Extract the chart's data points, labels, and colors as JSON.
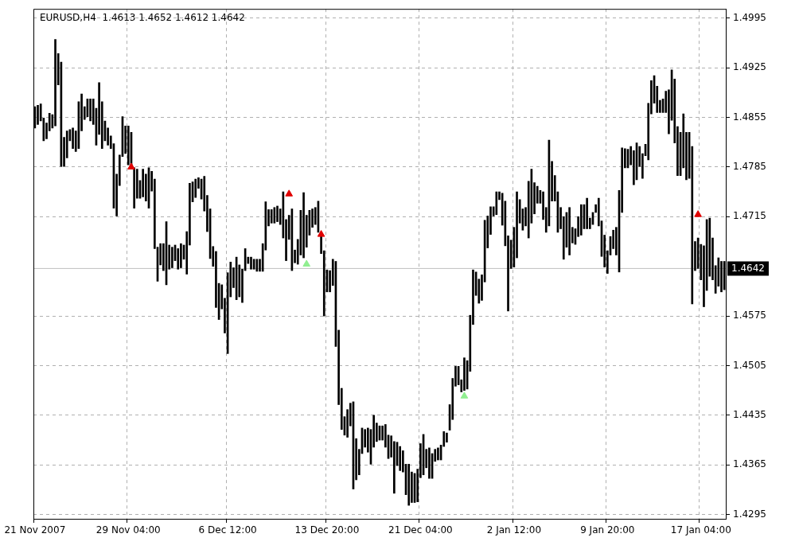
{
  "chart_data": {
    "type": "bar",
    "title": "EURUSD,H4  1.4613 1.4652 1.4612 1.4642",
    "categories": [
      "21 Nov 2007",
      null,
      null,
      null,
      null,
      null,
      null,
      null,
      null,
      null,
      null,
      null,
      null,
      null,
      null,
      null,
      null,
      null,
      null,
      null,
      null,
      null,
      null,
      null,
      null,
      null,
      null,
      null,
      null,
      null,
      null,
      null,
      "29 Nov 04:00",
      null,
      null,
      null,
      null,
      null,
      null,
      null,
      null,
      null,
      null,
      null,
      null,
      null,
      null,
      null,
      null,
      null,
      null,
      null,
      null,
      null,
      null,
      null,
      null,
      null,
      null,
      null,
      null,
      null,
      null,
      null,
      null,
      null,
      "6 Dec 12:00",
      null,
      null,
      null,
      null,
      null,
      null,
      null,
      null,
      null,
      null,
      null,
      null,
      null,
      null,
      null,
      null,
      null,
      null,
      null,
      null,
      null,
      null,
      null,
      null,
      null,
      null,
      null,
      null,
      null,
      null,
      null,
      null,
      null,
      "13 Dec 20:00",
      null,
      null,
      null,
      null,
      null,
      null,
      null,
      null,
      null,
      null,
      null,
      null,
      null,
      null,
      null,
      null,
      null,
      null,
      null,
      null,
      null,
      null,
      null,
      null,
      null,
      null,
      null,
      null,
      null,
      null,
      null,
      "21 Dec 04:00",
      null,
      null,
      null,
      null,
      null,
      null,
      null,
      null,
      null,
      null,
      null,
      null,
      null,
      null,
      null,
      null,
      null,
      null,
      null,
      null,
      null,
      null,
      null,
      null,
      null,
      null,
      null,
      null,
      null,
      null,
      null,
      "2 Jan 12:00",
      null,
      null,
      null,
      null,
      null,
      null,
      null,
      null,
      null,
      null,
      null,
      null,
      null,
      null,
      null,
      null,
      null,
      null,
      null,
      null,
      null,
      null,
      null,
      null,
      null,
      null,
      null,
      null,
      null,
      null,
      null,
      "9 Jan 20:00",
      null,
      null,
      null,
      null,
      null,
      null,
      null,
      null,
      null,
      null,
      null,
      null,
      null,
      null,
      null,
      null,
      null,
      null,
      null,
      null,
      null,
      null,
      null,
      null,
      null,
      null,
      null,
      null,
      null,
      null,
      null,
      "17 Jan 04:00",
      null,
      null,
      null,
      null,
      null,
      null,
      null,
      null
    ],
    "series": [
      {
        "color": "#000000",
        "base": [
          1.484,
          1.4845,
          1.485,
          1.4822,
          1.4825,
          1.4836,
          1.484,
          1.4843,
          1.4901,
          1.4786,
          1.4786,
          1.4798,
          1.4822,
          1.4811,
          1.4807,
          1.4811,
          1.4836,
          1.4852,
          1.4856,
          1.485,
          1.4845,
          1.4816,
          1.4831,
          1.4811,
          1.4822,
          1.4816,
          1.4811,
          1.4727,
          1.4716,
          1.4759,
          1.48,
          1.4804,
          1.4788,
          1.4784,
          1.4727,
          1.4741,
          1.4741,
          1.4743,
          1.4737,
          1.4727,
          1.4751,
          1.467,
          1.4624,
          1.4647,
          1.4639,
          1.4619,
          1.4641,
          1.4643,
          1.4653,
          1.4641,
          1.4643,
          1.4655,
          1.4634,
          1.4675,
          1.4736,
          1.4742,
          1.4755,
          1.474,
          1.4723,
          1.4694,
          1.4656,
          1.4645,
          1.4587,
          1.457,
          1.4585,
          1.4551,
          1.4522,
          1.4602,
          1.4615,
          1.4598,
          1.4602,
          1.4594,
          1.4639,
          1.4649,
          1.4641,
          1.4641,
          1.4638,
          1.4638,
          1.4638,
          1.4668,
          1.4702,
          1.4706,
          1.4706,
          1.4708,
          1.4704,
          1.4685,
          1.4653,
          1.4683,
          1.4639,
          1.465,
          1.4648,
          1.4661,
          1.4657,
          1.4672,
          1.4689,
          1.47,
          1.4704,
          1.4693,
          1.4663,
          1.4575,
          1.4609,
          1.4609,
          1.4618,
          1.4532,
          1.445,
          1.4415,
          1.4407,
          1.4404,
          1.442,
          1.4331,
          1.4344,
          1.4351,
          1.4381,
          1.439,
          1.4383,
          1.4366,
          1.439,
          1.4398,
          1.44,
          1.44,
          1.439,
          1.4374,
          1.4376,
          1.4325,
          1.4364,
          1.4357,
          1.4355,
          1.4323,
          1.4308,
          1.4312,
          1.4312,
          1.4313,
          1.4347,
          1.4351,
          1.4361,
          1.4346,
          1.4346,
          1.437,
          1.4372,
          1.4372,
          1.4391,
          1.4397,
          1.4414,
          1.4429,
          1.4476,
          1.4478,
          1.4468,
          1.447,
          1.4472,
          1.4497,
          1.4563,
          1.4604,
          1.4593,
          1.4597,
          1.4623,
          1.4671,
          1.469,
          1.4716,
          1.4718,
          1.4739,
          1.4703,
          1.4674,
          1.4582,
          1.4642,
          1.4644,
          1.4657,
          1.4706,
          1.4696,
          1.4702,
          1.4685,
          1.4706,
          1.4719,
          1.4734,
          1.4734,
          1.4711,
          1.4693,
          1.4702,
          1.4737,
          1.4737,
          1.4693,
          1.4698,
          1.4655,
          1.4672,
          1.4661,
          1.4678,
          1.4676,
          1.4687,
          1.4689,
          1.4698,
          1.4698,
          1.4698,
          1.4704,
          1.4721,
          1.4702,
          1.4659,
          1.4644,
          1.4635,
          1.4661,
          1.467,
          1.4661,
          1.4637,
          1.4721,
          1.4784,
          1.4784,
          1.4788,
          1.476,
          1.4767,
          1.4786,
          1.4769,
          1.4801,
          1.4795,
          1.486,
          1.4875,
          1.4862,
          1.4862,
          1.4862,
          1.4862,
          1.4832,
          1.4851,
          1.4819,
          1.4773,
          1.4773,
          1.4784,
          1.4767,
          1.4769,
          1.4592,
          1.4639,
          1.4642,
          1.4626,
          1.4588,
          1.4611,
          1.4631,
          1.4626,
          1.4607,
          1.4617,
          1.4609,
          1.4612
        ],
        "values": [
          0.003,
          0.0027,
          0.0024,
          0.0032,
          0.0022,
          0.0025,
          0.0019,
          0.0122,
          0.0044,
          0.0147,
          0.0041,
          0.0038,
          0.0016,
          0.0029,
          0.0029,
          0.0066,
          0.0052,
          0.0018,
          0.0025,
          0.0031,
          0.0036,
          0.0052,
          0.0073,
          0.0066,
          0.0028,
          0.0024,
          0.0018,
          0.0091,
          0.0059,
          0.0043,
          0.0056,
          0.0039,
          0.0055,
          0.005,
          0.0057,
          0.0041,
          0.0025,
          0.0039,
          0.0038,
          0.0057,
          0.0028,
          0.0098,
          0.0048,
          0.003,
          0.0038,
          0.0089,
          0.0034,
          0.0029,
          0.0022,
          0.0029,
          0.0034,
          0.002,
          0.006,
          0.0087,
          0.0028,
          0.0026,
          0.0015,
          0.0028,
          0.0049,
          0.0051,
          0.007,
          0.0028,
          0.0079,
          0.0051,
          0.0034,
          0.0049,
          0.0114,
          0.0049,
          0.0028,
          0.006,
          0.0045,
          0.0047,
          0.0031,
          0.0009,
          0.0017,
          0.0014,
          0.0017,
          0.0017,
          0.0039,
          0.0068,
          0.0023,
          0.0019,
          0.0022,
          0.0022,
          0.0022,
          0.0065,
          0.0058,
          0.0034,
          0.0087,
          0.0018,
          0.0035,
          0.0063,
          0.0092,
          0.0045,
          0.0035,
          0.0026,
          0.0024,
          0.0044,
          0.0024,
          0.0092,
          0.0031,
          0.003,
          0.0037,
          0.012,
          0.0105,
          0.0058,
          0.0026,
          0.0039,
          0.0032,
          0.0123,
          0.0058,
          0.0036,
          0.0036,
          0.0025,
          0.0034,
          0.0049,
          0.0045,
          0.0026,
          0.002,
          0.002,
          0.0032,
          0.0033,
          0.003,
          0.0073,
          0.0033,
          0.0034,
          0.003,
          0.0043,
          0.0058,
          0.0043,
          0.0041,
          0.0046,
          0.0048,
          0.0057,
          0.0026,
          0.0043,
          0.0035,
          0.0017,
          0.0017,
          0.0021,
          0.0021,
          0.0013,
          0.0036,
          0.0058,
          0.0028,
          0.0026,
          0.0017,
          0.0046,
          0.004,
          0.0079,
          0.0077,
          0.0033,
          0.0034,
          0.0036,
          0.0087,
          0.0045,
          0.0039,
          0.0013,
          0.0032,
          0.0011,
          0.0045,
          0.0063,
          0.0106,
          0.004,
          0.0056,
          0.0093,
          0.0033,
          0.003,
          0.0026,
          0.008,
          0.0076,
          0.0044,
          0.0024,
          0.0018,
          0.0039,
          0.0035,
          0.0121,
          0.0056,
          0.0036,
          0.0057,
          0.003,
          0.006,
          0.0049,
          0.0067,
          0.0022,
          0.0022,
          0.0028,
          0.0043,
          0.0034,
          0.0043,
          0.0015,
          0.0017,
          0.0011,
          0.0039,
          0.005,
          0.0045,
          0.0032,
          0.0026,
          0.0026,
          0.0039,
          0.0115,
          0.0091,
          0.0027,
          0.0026,
          0.0026,
          0.0048,
          0.0052,
          0.0028,
          0.0035,
          0.0016,
          0.008,
          0.0047,
          0.0039,
          0.0037,
          0.0017,
          0.0019,
          0.003,
          0.0062,
          0.0071,
          0.009,
          0.0069,
          0.0061,
          0.0076,
          0.0067,
          0.0065,
          0.0222,
          0.0041,
          0.0043,
          0.005,
          0.0086,
          0.01,
          0.0082,
          0.0059,
          0.0039,
          0.004,
          0.0043,
          0.004
        ]
      },
      {
        "type": "scatter",
        "color": "#e00000",
        "marker": "triangle",
        "values": [
          null,
          null,
          null,
          null,
          null,
          null,
          null,
          null,
          null,
          null,
          null,
          null,
          null,
          null,
          null,
          null,
          null,
          null,
          null,
          null,
          null,
          null,
          null,
          null,
          null,
          null,
          null,
          null,
          null,
          null,
          null,
          null,
          null,
          1.4785,
          null,
          null,
          null,
          null,
          null,
          null,
          null,
          null,
          null,
          null,
          null,
          null,
          null,
          null,
          null,
          null,
          null,
          null,
          null,
          null,
          null,
          null,
          null,
          null,
          null,
          null,
          null,
          null,
          null,
          null,
          null,
          null,
          null,
          null,
          null,
          null,
          null,
          null,
          null,
          null,
          null,
          null,
          null,
          null,
          null,
          null,
          null,
          null,
          null,
          null,
          null,
          null,
          null,
          1.4747,
          null,
          null,
          null,
          null,
          null,
          null,
          null,
          null,
          null,
          null,
          1.469,
          null,
          null,
          null,
          null,
          null,
          null,
          null,
          null,
          null,
          null,
          null,
          null,
          null,
          null,
          null,
          null,
          null,
          null,
          null,
          null,
          null,
          null,
          null,
          null,
          null,
          null,
          null,
          null,
          null,
          null,
          null,
          null,
          null,
          null,
          null,
          null,
          null,
          null,
          null,
          null,
          null,
          null,
          null,
          null,
          null,
          null,
          null,
          null,
          null,
          null,
          null,
          null,
          null,
          null,
          null,
          null,
          null,
          null,
          null,
          null,
          null,
          null,
          null,
          null,
          null,
          null,
          null,
          null,
          null,
          null,
          null,
          null,
          null,
          null,
          null,
          null,
          null,
          null,
          null,
          null,
          null,
          null,
          null,
          null,
          null,
          null,
          null,
          null,
          null,
          null,
          null,
          null,
          null,
          null,
          null,
          null,
          null,
          null,
          null,
          null,
          null,
          null,
          null,
          null,
          null,
          null,
          null,
          null,
          null,
          null,
          null,
          null,
          null,
          null,
          null,
          null,
          null,
          null,
          null,
          null,
          null,
          null,
          null,
          null,
          null,
          null,
          null,
          null,
          1.4718,
          null,
          null,
          null,
          null,
          null,
          null,
          null,
          null,
          null
        ]
      },
      {
        "type": "scatter",
        "color": "#90ee90",
        "marker": "triangle",
        "values": [
          null,
          null,
          null,
          null,
          null,
          null,
          null,
          null,
          null,
          null,
          null,
          null,
          null,
          null,
          null,
          null,
          null,
          null,
          null,
          null,
          null,
          null,
          null,
          null,
          null,
          null,
          null,
          null,
          null,
          null,
          null,
          null,
          null,
          null,
          null,
          null,
          null,
          null,
          null,
          null,
          null,
          null,
          null,
          null,
          null,
          null,
          null,
          null,
          null,
          null,
          null,
          null,
          null,
          null,
          null,
          null,
          null,
          null,
          null,
          null,
          null,
          null,
          null,
          null,
          null,
          null,
          null,
          null,
          null,
          null,
          null,
          null,
          null,
          null,
          null,
          null,
          null,
          null,
          null,
          null,
          null,
          null,
          null,
          null,
          null,
          null,
          null,
          null,
          null,
          null,
          null,
          null,
          null,
          1.4648,
          null,
          null,
          null,
          null,
          null,
          null,
          null,
          null,
          null,
          null,
          null,
          null,
          null,
          null,
          null,
          null,
          null,
          null,
          null,
          null,
          null,
          null,
          null,
          null,
          null,
          null,
          null,
          null,
          null,
          null,
          null,
          null,
          null,
          null,
          null,
          null,
          null,
          null,
          null,
          null,
          null,
          null,
          null,
          null,
          null,
          null,
          null,
          null,
          null,
          null,
          null,
          null,
          null,
          1.4462,
          null,
          null,
          null,
          null,
          null,
          null,
          null,
          null,
          null,
          null,
          null,
          null,
          null,
          null,
          null,
          null,
          null,
          null,
          null,
          null,
          null,
          null,
          null,
          null,
          null,
          null,
          null,
          null,
          null,
          null,
          null,
          null,
          null,
          null,
          null,
          null,
          null,
          null,
          null,
          null,
          null,
          null,
          null,
          null,
          null,
          null,
          null,
          null,
          null,
          null,
          null,
          null,
          null,
          null,
          null,
          null,
          null,
          null,
          null,
          null,
          null,
          null,
          null,
          null,
          null,
          null,
          null,
          null,
          null,
          null,
          null,
          null,
          null,
          null,
          null,
          null,
          null,
          null,
          null,
          null,
          null,
          null,
          null,
          null,
          null,
          null,
          null,
          null,
          null
        ]
      }
    ],
    "ylim": [
      1.4289,
      1.5008
    ],
    "yticks": [
      1.4295,
      1.4365,
      1.4435,
      1.4505,
      1.4575,
      1.4715,
      1.4785,
      1.4855,
      1.4925,
      1.4995
    ],
    "ref_lines": [
      {
        "axis": "y",
        "value": 1.4642,
        "label": "1.4642",
        "color": "#c0c0c0"
      }
    ],
    "grid": true,
    "legend": false
  }
}
